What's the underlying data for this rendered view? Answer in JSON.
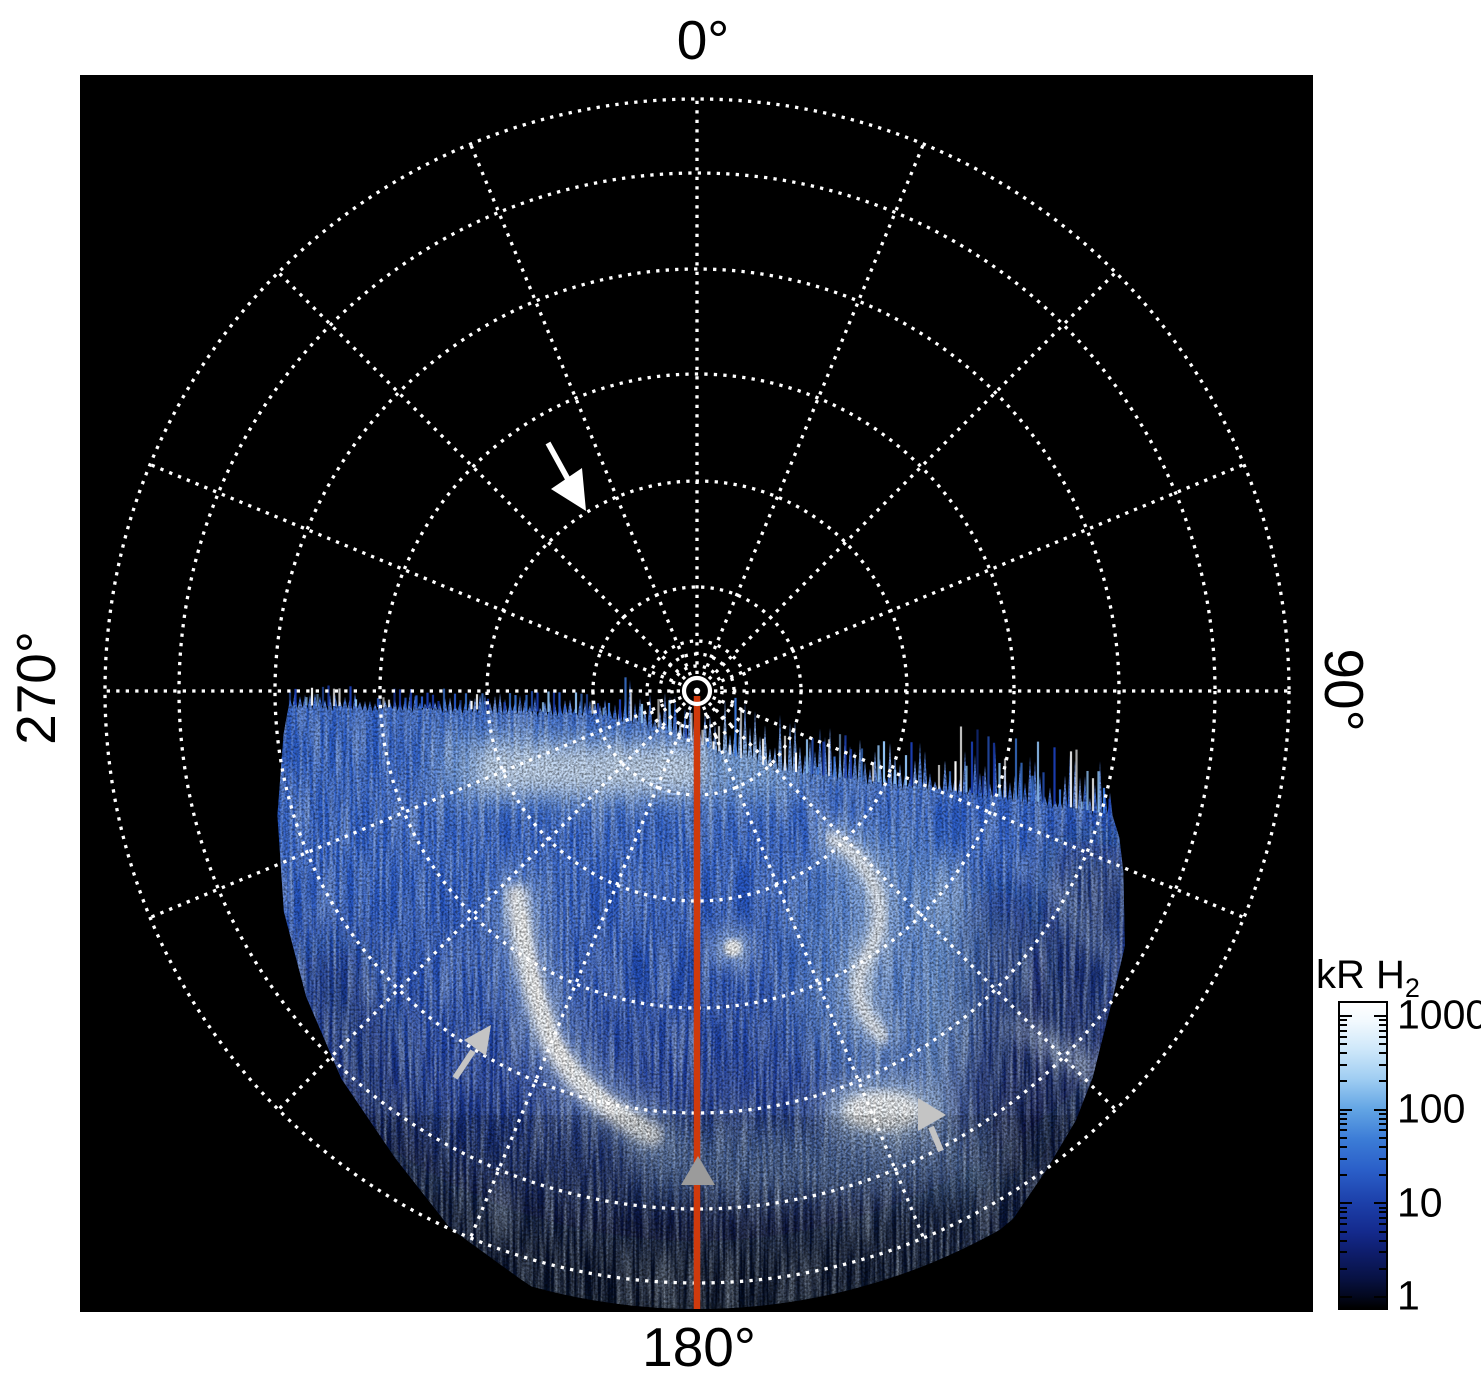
{
  "figure": {
    "axis_labels": {
      "top": "0°",
      "right": "90°",
      "bottom": "180°",
      "left": "270°"
    }
  },
  "colorbar": {
    "title_main": "kR H",
    "title_sub": "2",
    "ticks": [
      "1000",
      "100",
      "10",
      "1"
    ],
    "scale": "log"
  },
  "colors": {
    "page_background": "#ffffff",
    "plot_background": "#000000",
    "grid_dots": "#ffffff",
    "meridian_line_red": "#cf3a0c",
    "arrow_white": "#ffffff",
    "arrow_light_gray": "#c4c4c4",
    "triangle_gray": "#9b9b9b",
    "aurora_mid_blue": "#2a5ac9",
    "aurora_bright": "#ffffff"
  },
  "chart_data": {
    "type": "heatmap",
    "projection": "polar",
    "title": "",
    "angular_tick_labels": [
      "0°",
      "90°",
      "180°",
      "270°"
    ],
    "grid": {
      "style": "white dotted",
      "azimuthal_spokes_deg": 22.5,
      "n_spokes": 16,
      "concentric_circles": 9,
      "center_marker": "small solid white circle"
    },
    "colorbar": {
      "label": "kR H2",
      "scale": "log",
      "tick_values": [
        1000,
        100,
        10,
        1
      ],
      "range_kR": [
        1,
        1000
      ]
    },
    "description": "Polar-projection image of H2 auroral emission (kR). The lower half of the disk (azimuths ~90°-270°, centered on 180°) is filled with speckled blue emission reaching ~1-100 kR, with a ragged comb-like upper boundary just below the 270°-90° line. Very bright (~1000 kR) white arcs appear in the lower-left sector, right of center, and in a bright patch near the bottom. The upper half of the disk is dark (no emission).",
    "annotations": [
      {
        "type": "arrow",
        "color": "white",
        "location": "upper-left quadrant, pointing down-right (anti-sunward direction)"
      },
      {
        "type": "arrow",
        "color": "light gray",
        "location": "lower-left, pointing up-right at the brightest arc"
      },
      {
        "type": "arrow",
        "color": "light gray",
        "location": "lower-right of center, pointing right at a bright patch"
      },
      {
        "type": "arrowhead",
        "color": "gray",
        "location": "on the red 180° meridian line near the bottom, pointing up"
      },
      {
        "type": "line",
        "color": "orange-red",
        "location": "solid meridian line from disk center to 180° edge"
      }
    ]
  }
}
